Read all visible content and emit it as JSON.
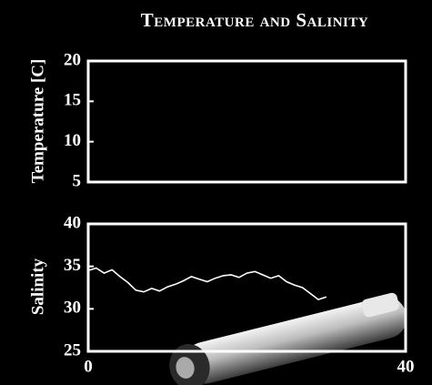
{
  "chart_data": [
    {
      "type": "line",
      "title": "Temperature and Salinity",
      "ylabel": "Temperature [C]",
      "ylim": [
        5,
        20
      ],
      "yticks": [
        5,
        10,
        15,
        20
      ]
    },
    {
      "type": "line",
      "ylabel": "Salinity",
      "x": [
        0,
        1,
        2,
        3,
        4,
        5,
        6,
        7,
        8,
        9,
        10,
        11,
        12,
        13,
        14,
        15,
        16,
        17,
        18,
        19,
        20,
        21,
        22,
        23,
        24,
        25,
        26,
        27,
        28,
        29,
        30
      ],
      "series": [
        {
          "color": "#ffffff",
          "values": [
            34.5,
            34.8,
            34.2,
            34.6,
            33.8,
            33.1,
            32.2,
            32.0,
            32.4,
            32.1,
            32.6,
            32.9,
            33.3,
            33.8,
            33.5,
            33.2,
            33.6,
            33.9,
            34.0,
            33.7,
            34.2,
            34.4,
            34.0,
            33.6,
            33.9,
            33.2,
            32.8,
            32.5,
            31.8,
            31.1,
            31.4
          ]
        }
      ],
      "xlim": [
        0,
        40
      ],
      "xticks": [
        0,
        40
      ],
      "ylim": [
        25,
        40
      ],
      "yticks": [
        25,
        30,
        35,
        40
      ]
    }
  ]
}
